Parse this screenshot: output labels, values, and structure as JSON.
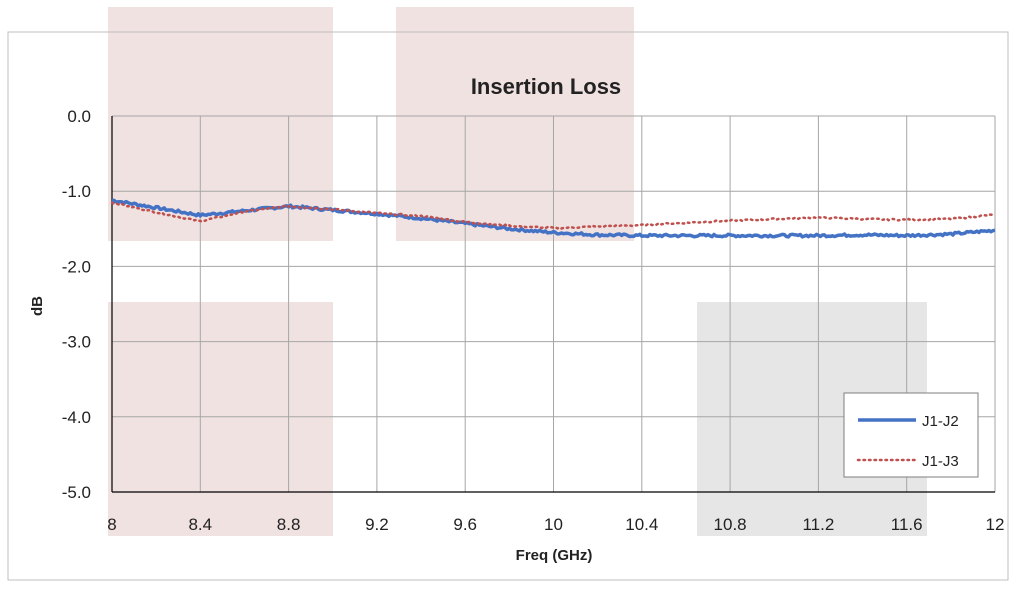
{
  "chart_data": {
    "type": "line",
    "title": "Insertion Loss",
    "xlabel": "Freq (GHz)",
    "ylabel": "dB",
    "xlim": [
      8,
      12
    ],
    "ylim": [
      -5,
      0
    ],
    "x_ticks": [
      "8",
      "8.4",
      "8.8",
      "9.2",
      "9.6",
      "10",
      "10.4",
      "10.8",
      "11.2",
      "11.6",
      "12"
    ],
    "y_ticks": [
      "0.0",
      "-1.0",
      "-2.0",
      "-3.0",
      "-4.0",
      "-5.0"
    ],
    "grid": true,
    "legend_position": "bottom-right",
    "series": [
      {
        "name": "J1-J2",
        "style": "solid",
        "color": "#4472c4",
        "x": [
          8.0,
          8.2,
          8.4,
          8.6,
          8.8,
          9.0,
          9.2,
          9.4,
          9.6,
          9.8,
          10.0,
          10.2,
          10.4,
          10.6,
          10.8,
          11.0,
          11.2,
          11.4,
          11.6,
          11.8,
          12.0
        ],
        "y": [
          -1.12,
          -1.22,
          -1.32,
          -1.26,
          -1.2,
          -1.25,
          -1.3,
          -1.36,
          -1.43,
          -1.5,
          -1.55,
          -1.58,
          -1.59,
          -1.59,
          -1.59,
          -1.59,
          -1.59,
          -1.58,
          -1.59,
          -1.57,
          -1.52
        ]
      },
      {
        "name": "J1-J3",
        "style": "dotted",
        "color": "#c0504d",
        "x": [
          8.0,
          8.2,
          8.4,
          8.6,
          8.8,
          9.0,
          9.2,
          9.4,
          9.6,
          9.8,
          10.0,
          10.2,
          10.4,
          10.6,
          10.8,
          11.0,
          11.2,
          11.4,
          11.6,
          11.8,
          12.0
        ],
        "y": [
          -1.15,
          -1.28,
          -1.4,
          -1.27,
          -1.2,
          -1.24,
          -1.29,
          -1.33,
          -1.41,
          -1.46,
          -1.49,
          -1.47,
          -1.45,
          -1.42,
          -1.39,
          -1.37,
          -1.35,
          -1.37,
          -1.38,
          -1.37,
          -1.31
        ]
      }
    ]
  }
}
